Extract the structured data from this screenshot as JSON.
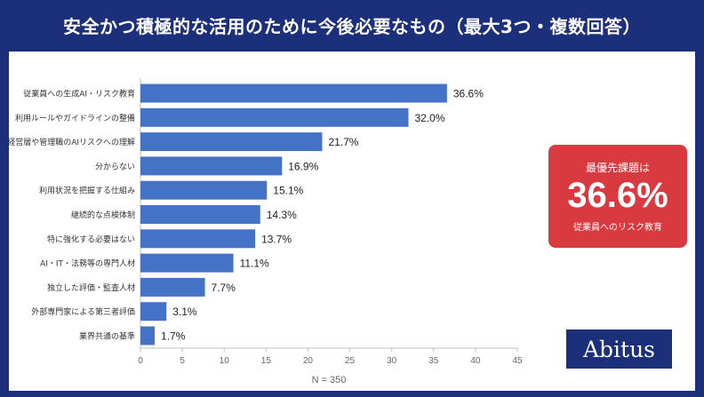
{
  "header": {
    "title": "安全かつ積極的な活用のために今後必要なもの（最大3つ・複数回答）"
  },
  "chart_data": {
    "type": "bar",
    "orientation": "horizontal",
    "categories": [
      "従業員への生成AI・リスク教育",
      "利用ルールやガイドラインの整備",
      "経営層や管理職のAIリスクへの理解",
      "分からない",
      "利用状況を把握する仕組み",
      "継続的な点検体制",
      "特に強化する必要はない",
      "AI・IT・法務等の専門人材",
      "独立した評価・監査人材",
      "外部専門家による第三者評価",
      "業界共通の基準"
    ],
    "values": [
      36.6,
      32.0,
      21.7,
      16.9,
      15.1,
      14.3,
      13.7,
      11.1,
      7.7,
      3.1,
      1.7
    ],
    "value_labels": [
      "36.6%",
      "32.0%",
      "21.7%",
      "16.9%",
      "15.1%",
      "14.3%",
      "13.7%",
      "11.1%",
      "7.7%",
      "3.1%",
      "1.7%"
    ],
    "xlim": [
      0,
      45
    ],
    "xticks": [
      0,
      5,
      10,
      15,
      20,
      25,
      30,
      35,
      40,
      45
    ],
    "xlabel": "N = 350",
    "grid": false,
    "bar_color": "#4472c4"
  },
  "callout": {
    "title": "最優先課題は",
    "value": "36.6%",
    "subtitle": "従業員へのリスク教育"
  },
  "logo": {
    "text": "Abitus"
  },
  "colors": {
    "header_bg": "#1c2f7a",
    "bar": "#4472c4",
    "callout_bg": "#d83a3f"
  }
}
